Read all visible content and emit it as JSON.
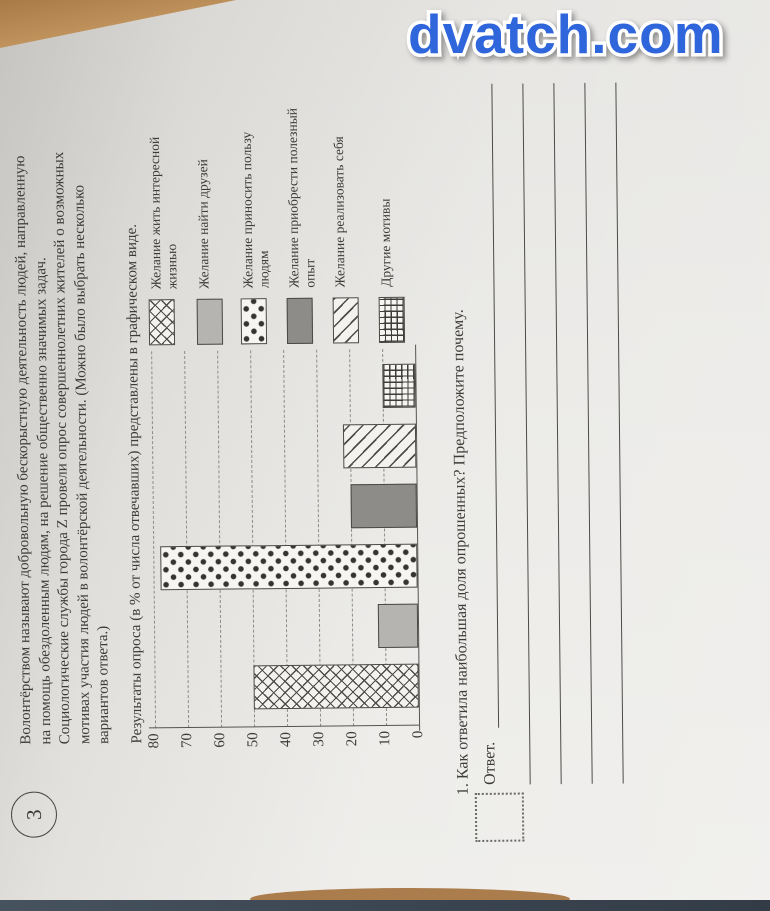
{
  "watermark": {
    "text": "dvatch.com",
    "color": "#2f66db"
  },
  "task": {
    "number": "3"
  },
  "intro": {
    "lines": [
      "Волонтёрством называют добровольную бескорыстную деятельность людей, направленную",
      "на помощь обездоленным людям, на решение общественно значимых задач.",
      "Социологические службы города Z провели опрос совершеннолетних жителей о возможных",
      "мотивах участия людей в волонтёрской деятельности. (Можно было выбрать несколько",
      "вариантов ответа.)"
    ]
  },
  "results_caption": "Результаты опроса (в % от числа отвечавших) представлены в графическом виде.",
  "chart_data": {
    "type": "bar",
    "categories": [
      "Желание жить интересной жизнью",
      "Желание найти друзей",
      "Желание приносить пользу людям",
      "Желание приобрести полезный опыт",
      "Желание реализовать себя",
      "Другие мотивы"
    ],
    "values": [
      50,
      12,
      78,
      20,
      22,
      10
    ],
    "patterns": [
      "crosshatch",
      "solid-light",
      "dots",
      "solid-dark",
      "diagonal",
      "grid"
    ],
    "unit": "% от числа отвечавших",
    "ylim": [
      0,
      80
    ],
    "yticks": [
      0,
      10,
      20,
      30,
      40,
      50,
      60,
      70,
      80
    ],
    "grid": true,
    "legend_position": "right",
    "xlabel": "",
    "ylabel": ""
  },
  "question": {
    "text": "1. Как ответила наибольшая доля опрошенных? Предположите почему."
  },
  "answer": {
    "label": "Ответ.",
    "lines_count": 5
  },
  "colors": {
    "watermark_blue": "#2f66db",
    "wood": "#b08050",
    "table_strip": "#3f4b57",
    "paper": "#e9e8e5"
  }
}
